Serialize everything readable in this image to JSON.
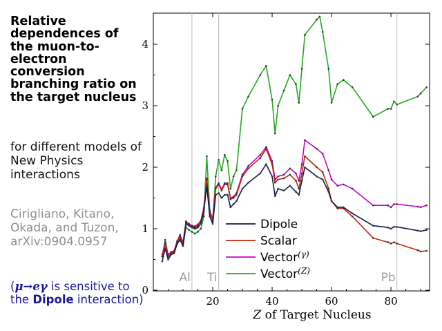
{
  "title": "Relative dependences of the muon-to-electron conversion branching ratio on the target nucleus",
  "subtitle": "for different models of New Physics interactions",
  "citation": "Cirigliano, Kitano, Okada, and Tuzon, arXiv:0904.0957",
  "note": {
    "open": "(",
    "formula": "μ→eγ",
    "mid": " is sensitive to the ",
    "bold": "Dipole",
    "end": " interaction)"
  },
  "chart_data": {
    "type": "line",
    "title": "",
    "xlabel_italic": "Z",
    "xlabel_rest": " of Target Nucleus",
    "ylabel": "",
    "xlim": [
      0,
      93
    ],
    "ylim": [
      0,
      4.5
    ],
    "xticks": [
      20,
      40,
      60,
      80
    ],
    "yticks": [
      0,
      1,
      2,
      3,
      4
    ],
    "grid": false,
    "legend_position": "bottom-center",
    "reference_lines": [
      {
        "label": "Al",
        "x": 13
      },
      {
        "label": "Ti",
        "x": 22
      },
      {
        "label": "Pb",
        "x": 82
      }
    ],
    "series": [
      {
        "name": "Dipole",
        "color": "#0d1a4f",
        "points": [
          [
            3,
            0.47
          ],
          [
            4,
            0.68
          ],
          [
            5,
            0.5
          ],
          [
            6,
            0.58
          ],
          [
            7,
            0.6
          ],
          [
            8,
            0.75
          ],
          [
            9,
            0.82
          ],
          [
            10,
            0.72
          ],
          [
            11,
            1.08
          ],
          [
            12,
            1.05
          ],
          [
            13,
            1.02
          ],
          [
            14,
            1.0
          ],
          [
            15,
            1.02
          ],
          [
            16,
            1.08
          ],
          [
            17,
            1.28
          ],
          [
            18,
            1.7
          ],
          [
            19,
            1.2
          ],
          [
            20,
            1.08
          ],
          [
            21,
            1.55
          ],
          [
            22,
            1.58
          ],
          [
            23,
            1.5
          ],
          [
            24,
            1.55
          ],
          [
            25,
            1.55
          ],
          [
            26,
            1.35
          ],
          [
            27,
            1.4
          ],
          [
            28,
            1.45
          ],
          [
            30,
            1.65
          ],
          [
            32,
            1.75
          ],
          [
            36,
            1.9
          ],
          [
            38,
            2.05
          ],
          [
            40,
            1.85
          ],
          [
            41,
            1.53
          ],
          [
            42,
            1.65
          ],
          [
            44,
            1.62
          ],
          [
            46,
            1.7
          ],
          [
            48,
            1.6
          ],
          [
            49,
            1.55
          ],
          [
            50,
            1.78
          ],
          [
            51,
            2.0
          ],
          [
            55,
            1.85
          ],
          [
            57,
            1.8
          ],
          [
            59,
            1.6
          ],
          [
            60,
            1.45
          ],
          [
            62,
            1.35
          ],
          [
            64,
            1.35
          ],
          [
            67,
            1.25
          ],
          [
            74,
            1.05
          ],
          [
            79,
            1.02
          ],
          [
            80,
            1.0
          ],
          [
            81,
            1.03
          ],
          [
            82,
            1.03
          ],
          [
            89,
            0.97
          ],
          [
            90,
            0.96
          ],
          [
            92,
            0.98
          ]
        ]
      },
      {
        "name": "Scalar",
        "color": "#cc2200",
        "points": [
          [
            3,
            0.55
          ],
          [
            4,
            0.75
          ],
          [
            5,
            0.55
          ],
          [
            6,
            0.6
          ],
          [
            7,
            0.62
          ],
          [
            8,
            0.78
          ],
          [
            9,
            0.88
          ],
          [
            10,
            0.76
          ],
          [
            11,
            1.1
          ],
          [
            12,
            1.06
          ],
          [
            13,
            1.04
          ],
          [
            14,
            1.02
          ],
          [
            15,
            1.05
          ],
          [
            16,
            1.12
          ],
          [
            17,
            1.32
          ],
          [
            18,
            1.8
          ],
          [
            19,
            1.25
          ],
          [
            20,
            1.15
          ],
          [
            21,
            1.65
          ],
          [
            22,
            1.72
          ],
          [
            23,
            1.62
          ],
          [
            24,
            1.72
          ],
          [
            25,
            1.72
          ],
          [
            26,
            1.48
          ],
          [
            27,
            1.5
          ],
          [
            28,
            1.55
          ],
          [
            30,
            1.85
          ],
          [
            32,
            1.98
          ],
          [
            36,
            2.15
          ],
          [
            38,
            2.3
          ],
          [
            40,
            2.05
          ],
          [
            41,
            1.75
          ],
          [
            42,
            1.8
          ],
          [
            44,
            1.82
          ],
          [
            46,
            1.88
          ],
          [
            48,
            1.78
          ],
          [
            49,
            1.65
          ],
          [
            50,
            1.9
          ],
          [
            51,
            2.18
          ],
          [
            55,
            2.0
          ],
          [
            57,
            1.92
          ],
          [
            59,
            1.65
          ],
          [
            60,
            1.45
          ],
          [
            62,
            1.33
          ],
          [
            64,
            1.33
          ],
          [
            67,
            1.2
          ],
          [
            74,
            0.85
          ],
          [
            79,
            0.78
          ],
          [
            80,
            0.76
          ],
          [
            81,
            0.78
          ],
          [
            82,
            0.76
          ],
          [
            89,
            0.65
          ],
          [
            90,
            0.63
          ],
          [
            92,
            0.64
          ]
        ]
      },
      {
        "name": "Vector(γ)",
        "color": "#cc00cc",
        "points": [
          [
            3,
            0.58
          ],
          [
            4,
            0.78
          ],
          [
            5,
            0.57
          ],
          [
            6,
            0.62
          ],
          [
            7,
            0.64
          ],
          [
            8,
            0.8
          ],
          [
            9,
            0.9
          ],
          [
            10,
            0.78
          ],
          [
            11,
            1.12
          ],
          [
            12,
            1.08
          ],
          [
            13,
            1.05
          ],
          [
            14,
            1.04
          ],
          [
            15,
            1.07
          ],
          [
            16,
            1.13
          ],
          [
            17,
            1.34
          ],
          [
            18,
            1.82
          ],
          [
            19,
            1.28
          ],
          [
            20,
            1.17
          ],
          [
            21,
            1.67
          ],
          [
            22,
            1.74
          ],
          [
            23,
            1.64
          ],
          [
            24,
            1.74
          ],
          [
            25,
            1.74
          ],
          [
            26,
            1.5
          ],
          [
            27,
            1.52
          ],
          [
            28,
            1.58
          ],
          [
            30,
            1.88
          ],
          [
            32,
            2.02
          ],
          [
            36,
            2.2
          ],
          [
            38,
            2.33
          ],
          [
            40,
            2.1
          ],
          [
            41,
            1.8
          ],
          [
            42,
            1.85
          ],
          [
            44,
            1.88
          ],
          [
            46,
            1.98
          ],
          [
            48,
            1.9
          ],
          [
            49,
            1.78
          ],
          [
            50,
            2.05
          ],
          [
            51,
            2.44
          ],
          [
            55,
            2.3
          ],
          [
            57,
            2.22
          ],
          [
            59,
            1.95
          ],
          [
            60,
            1.8
          ],
          [
            62,
            1.7
          ],
          [
            64,
            1.72
          ],
          [
            67,
            1.65
          ],
          [
            74,
            1.38
          ],
          [
            79,
            1.38
          ],
          [
            80,
            1.35
          ],
          [
            81,
            1.4
          ],
          [
            82,
            1.4
          ],
          [
            89,
            1.36
          ],
          [
            90,
            1.35
          ],
          [
            92,
            1.38
          ]
        ]
      },
      {
        "name": "Vector(Z)",
        "color": "#22aa22",
        "points": [
          [
            3,
            0.55
          ],
          [
            4,
            0.82
          ],
          [
            5,
            0.58
          ],
          [
            6,
            0.62
          ],
          [
            7,
            0.62
          ],
          [
            8,
            0.76
          ],
          [
            9,
            0.85
          ],
          [
            10,
            0.72
          ],
          [
            11,
            1.02
          ],
          [
            12,
            0.98
          ],
          [
            13,
            0.95
          ],
          [
            14,
            0.92
          ],
          [
            15,
            0.95
          ],
          [
            16,
            1.0
          ],
          [
            17,
            1.2
          ],
          [
            18,
            2.18
          ],
          [
            19,
            1.3
          ],
          [
            20,
            1.12
          ],
          [
            21,
            1.85
          ],
          [
            22,
            2.12
          ],
          [
            23,
            1.95
          ],
          [
            24,
            2.2
          ],
          [
            25,
            2.1
          ],
          [
            26,
            1.65
          ],
          [
            27,
            1.85
          ],
          [
            28,
            1.95
          ],
          [
            30,
            2.95
          ],
          [
            32,
            3.15
          ],
          [
            36,
            3.5
          ],
          [
            38,
            3.65
          ],
          [
            40,
            3.1
          ],
          [
            41,
            2.55
          ],
          [
            42,
            3.0
          ],
          [
            44,
            3.25
          ],
          [
            46,
            3.5
          ],
          [
            48,
            3.35
          ],
          [
            49,
            3.05
          ],
          [
            50,
            3.6
          ],
          [
            51,
            4.15
          ],
          [
            55,
            4.4
          ],
          [
            56,
            4.45
          ],
          [
            57,
            4.2
          ],
          [
            59,
            3.6
          ],
          [
            60,
            3.05
          ],
          [
            62,
            3.35
          ],
          [
            64,
            3.42
          ],
          [
            67,
            3.3
          ],
          [
            74,
            2.82
          ],
          [
            79,
            2.95
          ],
          [
            80,
            2.95
          ],
          [
            81,
            3.07
          ],
          [
            82,
            3.02
          ],
          [
            89,
            3.15
          ],
          [
            90,
            3.2
          ],
          [
            92,
            3.3
          ]
        ]
      }
    ]
  }
}
